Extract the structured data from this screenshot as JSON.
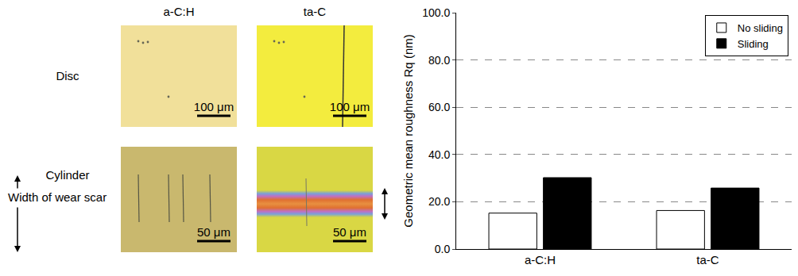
{
  "chart_data": {
    "type": "bar",
    "categories": [
      "a-C:H",
      "ta-C"
    ],
    "series": [
      {
        "name": "No sliding",
        "color": "#ffffff",
        "values": [
          15.2,
          16.3
        ]
      },
      {
        "name": "Sliding",
        "color": "#000000",
        "values": [
          30.2,
          25.8
        ]
      }
    ],
    "ylabel": "Geometric mean roughness Rq (nm)",
    "ylim": [
      0,
      100
    ],
    "yticks": [
      {
        "value": 0,
        "label": "0.0"
      },
      {
        "value": 20,
        "label": "20.0"
      },
      {
        "value": 40,
        "label": "40.0"
      },
      {
        "value": 60,
        "label": "60.0"
      },
      {
        "value": 80,
        "label": "80.0"
      },
      {
        "value": 100,
        "label": "100.0"
      }
    ],
    "grid": true,
    "legend": "upper right"
  },
  "micrographs": {
    "columns": [
      "a-C:H",
      "ta-C"
    ],
    "rows": [
      {
        "label": "Disc",
        "scale_bars": [
          "100 μm",
          "100 μm"
        ]
      },
      {
        "label": "Cylinder",
        "sublabel": "Width of wear scar",
        "scale_bars": [
          "50 μm",
          "50 μm"
        ]
      }
    ]
  }
}
